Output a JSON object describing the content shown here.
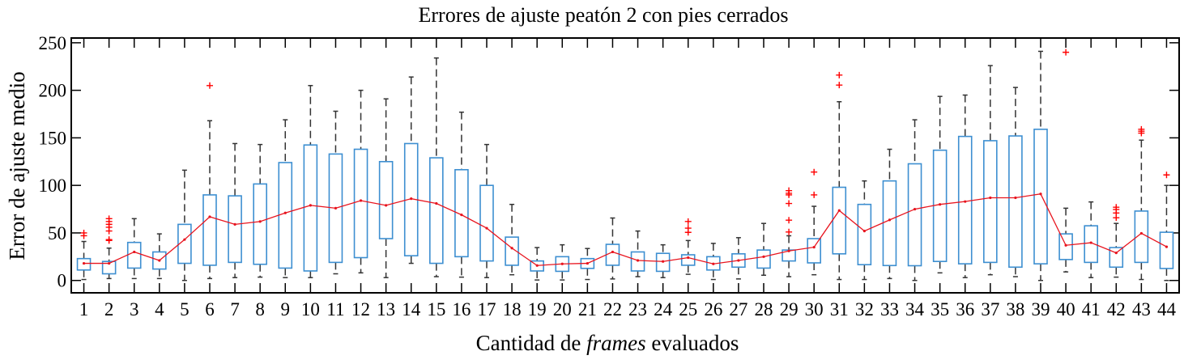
{
  "chart_data": {
    "type": "box",
    "title": "Errores de ajuste peatón 2 con pies cerrados",
    "xlabel_prefix": "Cantidad de ",
    "xlabel_italic": "frames",
    "xlabel_suffix": " evaluados",
    "ylabel": "Error de ajuste medio",
    "ylim": [
      -13,
      255
    ],
    "yticks": [
      0,
      50,
      100,
      150,
      200,
      250
    ],
    "categories": [
      "1",
      "2",
      "3",
      "4",
      "5",
      "6",
      "7",
      "8",
      "9",
      "10",
      "11",
      "12",
      "13",
      "14",
      "15",
      "16",
      "17",
      "18",
      "19",
      "20",
      "21",
      "22",
      "23",
      "24",
      "25",
      "26",
      "27",
      "28",
      "29",
      "30",
      "31",
      "32",
      "33",
      "34",
      "35",
      "36",
      "37",
      "38",
      "39",
      "40",
      "41",
      "42",
      "43",
      "44"
    ],
    "boxes": [
      {
        "low": 1,
        "q1": 11,
        "q3": 23,
        "high": 41,
        "mean": 18,
        "outliers": [
          50,
          47
        ]
      },
      {
        "low": 2,
        "q1": 7,
        "q3": 20,
        "high": 34,
        "mean": 18,
        "outliers": [
          65,
          62,
          59,
          56,
          52,
          43,
          42
        ]
      },
      {
        "low": 2,
        "q1": 13,
        "q3": 40,
        "high": 65,
        "mean": 30,
        "outliers": []
      },
      {
        "low": 2,
        "q1": 12,
        "q3": 30,
        "high": 49,
        "mean": 21,
        "outliers": []
      },
      {
        "low": 0,
        "q1": 18,
        "q3": 59,
        "high": 116,
        "mean": 43,
        "outliers": []
      },
      {
        "low": 2,
        "q1": 16,
        "q3": 90,
        "high": 168,
        "mean": 67,
        "outliers": [
          205
        ]
      },
      {
        "low": 3,
        "q1": 19,
        "q3": 89,
        "high": 144,
        "mean": 59,
        "outliers": []
      },
      {
        "low": 3.5,
        "q1": 17,
        "q3": 101.5,
        "high": 143,
        "mean": 62,
        "outliers": []
      },
      {
        "low": 3,
        "q1": 13,
        "q3": 124,
        "high": 169,
        "mean": 71,
        "outliers": []
      },
      {
        "low": 3,
        "q1": 10,
        "q3": 142.5,
        "high": 205,
        "mean": 79,
        "outliers": []
      },
      {
        "low": 7,
        "q1": 19,
        "q3": 133,
        "high": 178,
        "mean": 76,
        "outliers": []
      },
      {
        "low": 8,
        "q1": 24,
        "q3": 138,
        "high": 200,
        "mean": 84,
        "outliers": []
      },
      {
        "low": 3,
        "q1": 44,
        "q3": 125,
        "high": 191,
        "mean": 79,
        "outliers": []
      },
      {
        "low": 18,
        "q1": 26,
        "q3": 144,
        "high": 214,
        "mean": 86,
        "outliers": []
      },
      {
        "low": 4,
        "q1": 18,
        "q3": 129,
        "high": 234,
        "mean": 81,
        "outliers": []
      },
      {
        "low": 3.5,
        "q1": 25,
        "q3": 116.5,
        "high": 177,
        "mean": 69,
        "outliers": []
      },
      {
        "low": 3,
        "q1": 20.5,
        "q3": 100,
        "high": 143,
        "mean": 55,
        "outliers": []
      },
      {
        "low": 6,
        "q1": 16,
        "q3": 45.6,
        "high": 80,
        "mean": 34,
        "outliers": []
      },
      {
        "low": 0.5,
        "q1": 10,
        "q3": 20.5,
        "high": 34.6,
        "mean": 15.7,
        "outliers": []
      },
      {
        "low": 0.5,
        "q1": 9.6,
        "q3": 25,
        "high": 37.5,
        "mean": 17.4,
        "outliers": []
      },
      {
        "low": 1,
        "q1": 12.7,
        "q3": 23,
        "high": 33.6,
        "mean": 18,
        "outliers": []
      },
      {
        "low": 1.6,
        "q1": 16,
        "q3": 38,
        "high": 65.7,
        "mean": 30,
        "outliers": []
      },
      {
        "low": 4,
        "q1": 10,
        "q3": 30,
        "high": 52,
        "mean": 21,
        "outliers": []
      },
      {
        "low": 3,
        "q1": 9.6,
        "q3": 28.5,
        "high": 37.5,
        "mean": 20,
        "outliers": []
      },
      {
        "low": 6.5,
        "q1": 16,
        "q3": 27,
        "high": 42,
        "mean": 24,
        "outliers": [
          62,
          55,
          50.6
        ]
      },
      {
        "low": 1,
        "q1": 11,
        "q3": 25,
        "high": 39,
        "mean": 17.4,
        "outliers": []
      },
      {
        "low": 1.6,
        "q1": 14,
        "q3": 28,
        "high": 45,
        "mean": 21,
        "outliers": []
      },
      {
        "low": 5.5,
        "q1": 13,
        "q3": 32,
        "high": 60,
        "mean": 25,
        "outliers": []
      },
      {
        "low": 4,
        "q1": 20.5,
        "q3": 32,
        "high": 47,
        "mean": 31,
        "outliers": [
          94.5,
          91.7,
          90,
          81,
          63.4,
          51
        ]
      },
      {
        "low": 6,
        "q1": 18.5,
        "q3": 44,
        "high": 78,
        "mean": 35,
        "outliers": [
          114,
          90
        ]
      },
      {
        "low": 1,
        "q1": 28,
        "q3": 98,
        "high": 188,
        "mean": 73.6,
        "outliers": [
          216,
          205.5
        ]
      },
      {
        "low": 1,
        "q1": 16.6,
        "q3": 80,
        "high": 104.7,
        "mean": 52,
        "outliers": []
      },
      {
        "low": 2,
        "q1": 15.7,
        "q3": 104.7,
        "high": 138,
        "mean": 63.7,
        "outliers": []
      },
      {
        "low": 0,
        "q1": 15.5,
        "q3": 122.7,
        "high": 169,
        "mean": 75,
        "outliers": []
      },
      {
        "low": 8,
        "q1": 20,
        "q3": 137,
        "high": 193.6,
        "mean": 80,
        "outliers": []
      },
      {
        "low": 3,
        "q1": 17.5,
        "q3": 151.5,
        "high": 195,
        "mean": 83,
        "outliers": []
      },
      {
        "low": 6,
        "q1": 19,
        "q3": 147,
        "high": 226,
        "mean": 87,
        "outliers": []
      },
      {
        "low": 4,
        "q1": 14,
        "q3": 152,
        "high": 203,
        "mean": 87,
        "outliers": []
      },
      {
        "low": 0,
        "q1": 17.5,
        "q3": 159,
        "high": 241,
        "mean": 91,
        "outliers": []
      },
      {
        "low": 9,
        "q1": 22,
        "q3": 49,
        "high": 76,
        "mean": 37,
        "outliers": [
          240
        ]
      },
      {
        "low": 3,
        "q1": 19,
        "q3": 57.5,
        "high": 82.6,
        "mean": 39.7,
        "outliers": []
      },
      {
        "low": 3.5,
        "q1": 14,
        "q3": 34.6,
        "high": 60,
        "mean": 29,
        "outliers": [
          77,
          74.7,
          71,
          66
        ]
      },
      {
        "low": 1,
        "q1": 19,
        "q3": 73,
        "high": 147.6,
        "mean": 49.6,
        "outliers": [
          159,
          157,
          155
        ]
      },
      {
        "low": 0,
        "q1": 12.6,
        "q3": 50.7,
        "high": 100,
        "mean": 35.4,
        "outliers": [
          111
        ]
      }
    ],
    "grid": false,
    "colors": {
      "box": "#3d8fd1",
      "whisker": "#333333",
      "mean": "#e8141e",
      "outlier": "#ff0000"
    }
  }
}
